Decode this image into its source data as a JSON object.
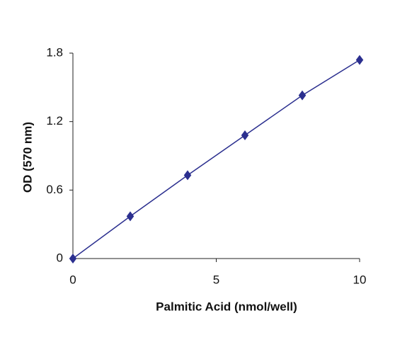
{
  "chart_data": {
    "type": "line",
    "x_label": "Palmitic Acid (nmol/well)",
    "y_label": "OD (570 nm)",
    "x": [
      0,
      2,
      4,
      6,
      8,
      10
    ],
    "series": [
      {
        "color": "#2b2f8f",
        "values": [
          0,
          0.37,
          0.73,
          1.08,
          1.43,
          1.74
        ]
      }
    ],
    "xlim": [
      0,
      10
    ],
    "xticks": [
      0,
      5,
      10
    ],
    "ylim": [
      0,
      1.8
    ],
    "yticks": [
      0,
      0.6,
      1.2,
      1.8
    ],
    "grid": false
  }
}
